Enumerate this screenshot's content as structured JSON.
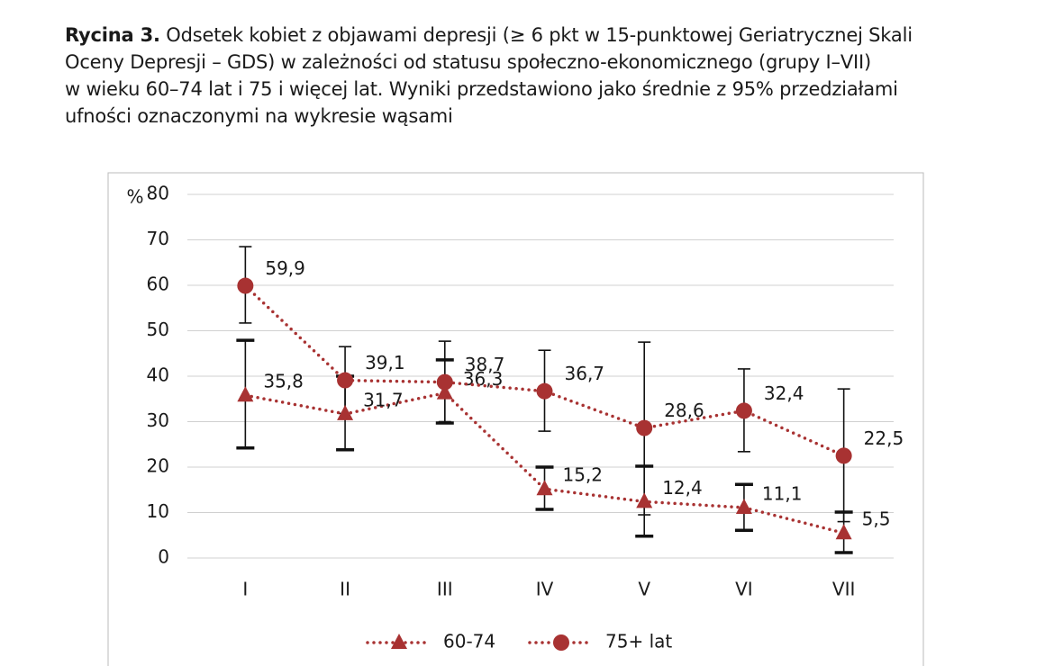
{
  "caption": {
    "label": "Rycina 3.",
    "lines": [
      "Odsetek kobiet z objawami depresji (≥ 6 pkt w 15-punktowej Geriatrycznej Skali",
      "Oceny Depresji – GDS) w zależności od statusu społeczno-ekonomicznego (grupy I–VII)",
      "w wieku 60–74 lat i 75 i więcej lat. Wyniki przedstawiono jako średnie z 95% przedziałami",
      "ufności oznaczonymi na wykresie wąsami"
    ]
  },
  "chart_data": {
    "type": "line",
    "y_label": "%",
    "categories": [
      "I",
      "II",
      "III",
      "IV",
      "V",
      "VI",
      "VII"
    ],
    "ylim": [
      0,
      80
    ],
    "yticks": [
      0,
      10,
      20,
      30,
      40,
      50,
      60,
      70,
      80
    ],
    "grid": true,
    "series": [
      {
        "name": "60-74",
        "color": "#a83232",
        "marker": "triangle",
        "values": [
          35.8,
          31.7,
          36.3,
          15.2,
          12.4,
          11.1,
          5.5
        ],
        "value_labels": [
          "35,8",
          "31,7",
          "36,3",
          "15,2",
          "12,4",
          "11,1",
          "5,5"
        ],
        "lower": [
          24.2,
          23.8,
          29.7,
          10.7,
          4.8,
          6.1,
          1.2
        ],
        "upper": [
          47.9,
          40,
          43.6,
          20,
          20.2,
          16.2,
          10.1
        ]
      },
      {
        "name": "75+ lat",
        "color": "#a83232",
        "marker": "circle",
        "values": [
          59.9,
          39.1,
          38.7,
          36.7,
          28.6,
          32.4,
          22.5
        ],
        "value_labels": [
          "59,9",
          "39,1",
          "38,7",
          "36,7",
          "28,6",
          "32,4",
          "22,5"
        ],
        "lower": [
          51.7,
          31.8,
          30,
          27.9,
          9.5,
          23.4,
          8
        ],
        "upper": [
          68.5,
          46.5,
          47.7,
          45.7,
          47.5,
          41.6,
          37.2
        ]
      }
    ]
  }
}
